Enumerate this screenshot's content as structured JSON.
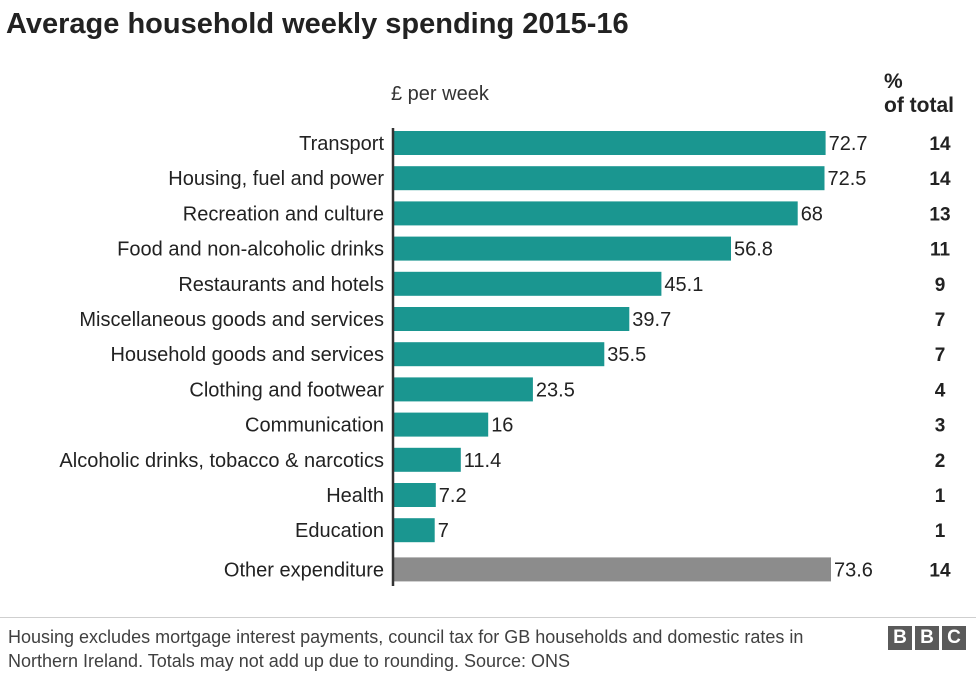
{
  "header": {
    "title": "Average household weekly spending 2015-16"
  },
  "chart_data": {
    "type": "bar",
    "orientation": "horizontal",
    "title": "Average household weekly spending 2015-16",
    "xlabel": "£ per week",
    "extra_column_label": "%\nof total",
    "categories": [
      "Transport",
      "Housing, fuel and power",
      "Recreation and culture",
      "Food and non-alcoholic drinks",
      "Restaurants and hotels",
      "Miscellaneous goods and services",
      "Household goods and services",
      "Clothing and footwear",
      "Communication",
      "Alcoholic drinks, tobacco & narcotics",
      "Health",
      "Education",
      "Other expenditure"
    ],
    "values": [
      72.7,
      72.5,
      68,
      56.8,
      45.1,
      39.7,
      35.5,
      23.5,
      16,
      11.4,
      7.2,
      7,
      73.6
    ],
    "value_labels": [
      "72.7",
      "72.5",
      "68",
      "56.8",
      "45.1",
      "39.7",
      "35.5",
      "23.5",
      "16",
      "11.4",
      "7.2",
      "7",
      "73.6"
    ],
    "percent_of_total": [
      "14",
      "14",
      "13",
      "11",
      "9",
      "7",
      "7",
      "4",
      "3",
      "2",
      "1",
      "1",
      "14"
    ],
    "bar_colors": [
      "#1a9690",
      "#1a9690",
      "#1a9690",
      "#1a9690",
      "#1a9690",
      "#1a9690",
      "#1a9690",
      "#1a9690",
      "#1a9690",
      "#1a9690",
      "#1a9690",
      "#1a9690",
      "#8c8c8c"
    ],
    "xlim": [
      0,
      73.6
    ],
    "grid": false
  },
  "footer": {
    "note": "Housing excludes mortgage interest payments, council tax for GB households and domestic rates in Northern Ireland. Totals may not add up due to rounding. Source: ONS",
    "logo": [
      "B",
      "B",
      "C"
    ]
  },
  "colors": {
    "bar": "#1a9690",
    "other_bar": "#8c8c8c",
    "axis": "#333333",
    "text": "#222222"
  }
}
